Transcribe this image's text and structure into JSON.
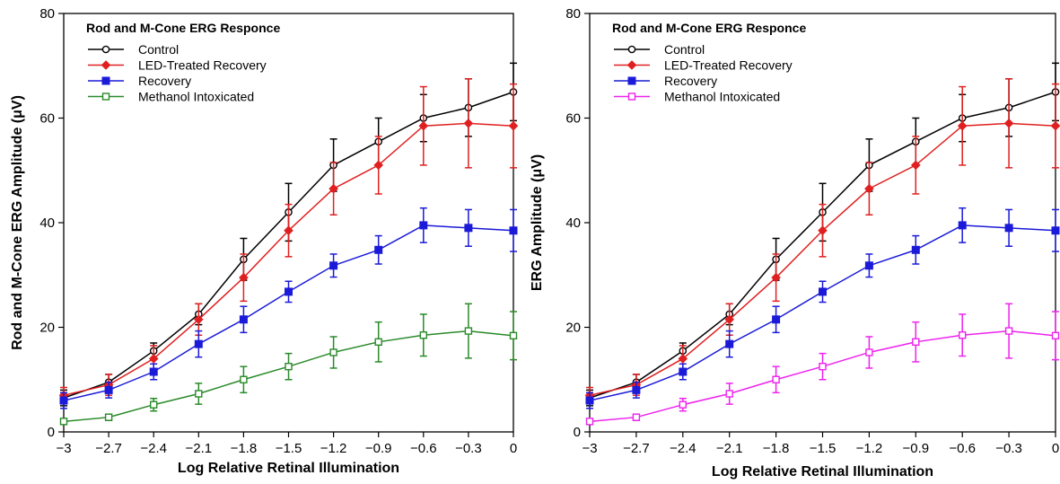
{
  "chart_data": [
    {
      "type": "line",
      "title": "Rod and M-Cone ERG Responce",
      "xlabel": "Log Relative Retinal Illumination",
      "ylabel": "Rod and M-Cone ERG Amplitude (μV)",
      "xlim": [
        -3,
        0
      ],
      "ylim": [
        0,
        80
      ],
      "x_ticks": [
        "−3",
        "−2.7",
        "−2.4",
        "−2.1",
        "−1.8",
        "−1.5",
        "−1.2",
        "−0.9",
        "−0.6",
        "−0.3",
        "0"
      ],
      "y_ticks": [
        "0",
        "20",
        "40",
        "60",
        "80"
      ],
      "legend_position": "top-left",
      "x": [
        -3,
        -2.7,
        -2.4,
        -2.1,
        -1.8,
        -1.5,
        -1.2,
        -0.9,
        -0.6,
        -0.3,
        0
      ],
      "series": [
        {
          "name": "Control",
          "color": "#000000",
          "marker": "circle-open",
          "values": [
            6.5,
            9.5,
            15.5,
            22.5,
            33,
            42,
            51,
            55.5,
            60,
            62,
            65
          ],
          "errors": [
            1.5,
            1.5,
            1.5,
            2,
            4,
            5.5,
            5,
            4.5,
            4.5,
            5.5,
            5.5
          ]
        },
        {
          "name": "LED-Treated Recovery",
          "color": "#e02020",
          "marker": "diamond-filled",
          "values": [
            7,
            9,
            14,
            21.5,
            29.5,
            38.5,
            46.5,
            51,
            58.5,
            59,
            58.5
          ],
          "errors": [
            1.5,
            2,
            2.5,
            3,
            4.5,
            5,
            5,
            5.5,
            7.5,
            8.5,
            8
          ]
        },
        {
          "name": "Recovery",
          "color": "#1a1ad8",
          "marker": "square-filled",
          "values": [
            6,
            8,
            11.5,
            16.8,
            21.5,
            26.8,
            31.8,
            34.8,
            39.5,
            39,
            38.5
          ],
          "errors": [
            1.5,
            1.5,
            1.5,
            2.5,
            2.5,
            2,
            2.2,
            2.7,
            3.3,
            3.5,
            4
          ]
        },
        {
          "name": "Methanol Intoxicated",
          "color": "#2a8a2a",
          "marker": "square-open",
          "values": [
            2,
            2.8,
            5.2,
            7.3,
            10,
            12.5,
            15.2,
            17.2,
            18.5,
            19.3,
            18.4
          ],
          "errors": [
            0.5,
            0.6,
            1.2,
            2,
            2.5,
            2.5,
            3,
            3.8,
            4,
            5.2,
            4.6
          ]
        }
      ]
    },
    {
      "type": "line",
      "title": "Rod and M-Cone ERG Responce",
      "xlabel": "Log Relative Retinal Illumination",
      "ylabel": "ERG Amplitude (μV)",
      "xlim": [
        -3,
        0
      ],
      "ylim": [
        0,
        80
      ],
      "x_ticks": [
        "−3",
        "−2.7",
        "−2.4",
        "−2.1",
        "−1.8",
        "−1.5",
        "−1.2",
        "−0.9",
        "−0.6",
        "−0.3",
        "0"
      ],
      "y_ticks": [
        "0",
        "20",
        "40",
        "60",
        "80"
      ],
      "legend_position": "top-left",
      "x": [
        -3,
        -2.7,
        -2.4,
        -2.1,
        -1.8,
        -1.5,
        -1.2,
        -0.9,
        -0.6,
        -0.3,
        0
      ],
      "series": [
        {
          "name": "Control",
          "color": "#000000",
          "marker": "circle-open",
          "values": [
            6.5,
            9.5,
            15.5,
            22.5,
            33,
            42,
            51,
            55.5,
            60,
            62,
            65
          ],
          "errors": [
            1.5,
            1.5,
            1.5,
            2,
            4,
            5.5,
            5,
            4.5,
            4.5,
            5.5,
            5.5
          ]
        },
        {
          "name": "LED-Treated Recovery",
          "color": "#e02020",
          "marker": "diamond-filled",
          "values": [
            7,
            9,
            14,
            21.5,
            29.5,
            38.5,
            46.5,
            51,
            58.5,
            59,
            58.5
          ],
          "errors": [
            1.5,
            2,
            2.5,
            3,
            4.5,
            5,
            5,
            5.5,
            7.5,
            8.5,
            8
          ]
        },
        {
          "name": "Recovery",
          "color": "#1a1ad8",
          "marker": "square-filled",
          "values": [
            6,
            8,
            11.5,
            16.8,
            21.5,
            26.8,
            31.8,
            34.8,
            39.5,
            39,
            38.5
          ],
          "errors": [
            1.5,
            1.5,
            1.5,
            2.5,
            2.5,
            2,
            2.2,
            2.7,
            3.3,
            3.5,
            4
          ]
        },
        {
          "name": "Methanol Intoxicated",
          "color": "#ee22ee",
          "marker": "square-open",
          "values": [
            2,
            2.8,
            5.2,
            7.3,
            10,
            12.5,
            15.2,
            17.2,
            18.5,
            19.3,
            18.4
          ],
          "errors": [
            0.5,
            0.6,
            1.2,
            2,
            2.5,
            2.5,
            3,
            3.8,
            4,
            5.2,
            4.6
          ]
        }
      ]
    }
  ]
}
